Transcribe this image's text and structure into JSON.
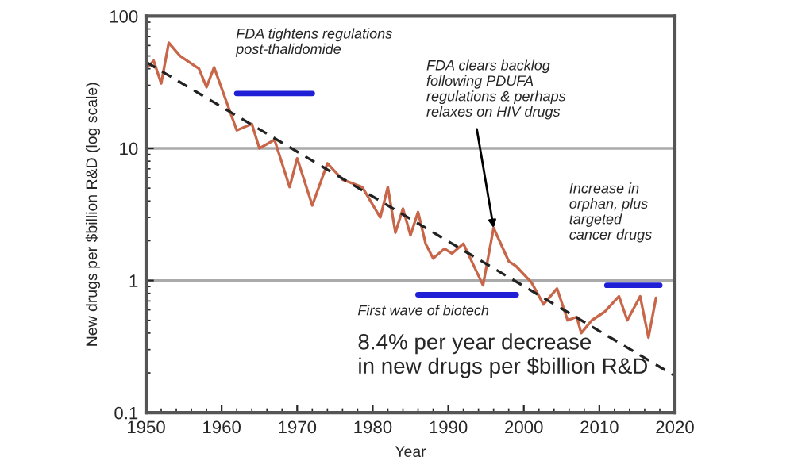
{
  "chart_data": {
    "type": "line",
    "xlabel": "Year",
    "ylabel": "New drugs per $billion R&D (log scale)",
    "log": "y",
    "xlim": [
      1950,
      2020
    ],
    "xticks": [
      1950,
      1960,
      1970,
      1980,
      1990,
      2000,
      2010,
      2020
    ],
    "ylim": [
      0.1,
      100
    ],
    "yticks": [
      {
        "value": 0.1,
        "label": "0.1"
      },
      1,
      10,
      100
    ],
    "grid": "y",
    "series": [
      {
        "color": "#c8664a",
        "line_style": "solid",
        "x": [
          1950,
          1951,
          1952,
          1953,
          1954.5,
          1957,
          1958,
          1959,
          1962,
          1964,
          1965,
          1967,
          1969,
          1970,
          1972,
          1974,
          1976,
          1978.6,
          1981,
          1982,
          1983,
          1984,
          1985,
          1986,
          1987,
          1988,
          1989.5,
          1990.5,
          1992,
          1994.6,
          1996,
          1998,
          1999,
          2001,
          2002.6,
          2004.4,
          2005.8,
          2007,
          2007.6,
          2009,
          2010.7,
          2012.6,
          2013.7,
          2015.4,
          2016.5,
          2017.5
        ],
        "values": [
          40,
          46,
          31,
          63,
          50,
          40,
          29,
          41,
          13.7,
          15.3,
          10,
          11.6,
          5.1,
          8.4,
          3.7,
          7.7,
          5.8,
          5.1,
          3.0,
          5.1,
          2.3,
          3.5,
          2.2,
          3.3,
          1.9,
          1.47,
          1.74,
          1.6,
          1.9,
          0.92,
          2.5,
          1.4,
          1.28,
          0.97,
          0.66,
          0.87,
          0.5,
          0.53,
          0.4,
          0.5,
          0.58,
          0.76,
          0.5,
          0.76,
          0.37,
          0.74
        ]
      },
      {
        "color": "#222222",
        "line_style": "dashed",
        "x": [
          1950,
          2020
        ],
        "values": [
          45,
          0.19
        ]
      },
      {
        "color": "#1f1fd6",
        "line_style": "solid",
        "x": [
          1962,
          1972
        ],
        "values": [
          26,
          26
        ]
      },
      {
        "color": "#1f1fd6",
        "line_style": "solid",
        "x": [
          1986,
          1999
        ],
        "values": [
          0.78,
          0.78
        ]
      },
      {
        "color": "#1f1fd6",
        "line_style": "solid",
        "x": [
          2011,
          2018
        ],
        "values": [
          0.92,
          0.92
        ]
      }
    ],
    "annotations": [
      "FDA tightens regulations\npost-thalidomide",
      {
        "text": "FDA clears backlog\nfollowing PDUFA\nregulations & perhaps\nrelaxes on HIV drugs",
        "x": 1996,
        "y": 2.5
      },
      "Increase in\norphan, plus\ntargeted\ncancer drugs",
      "First wave of biotech",
      "8.4% per year decrease\nin new drugs per $billion R&D"
    ]
  }
}
